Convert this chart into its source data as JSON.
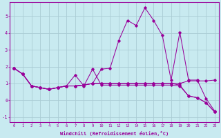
{
  "xlabel": "Windchill (Refroidissement éolien,°C)",
  "background_color": "#c8eaf0",
  "grid_color": "#b8d8e0",
  "line_color": "#990099",
  "xlim_min": -0.5,
  "xlim_max": 23.5,
  "ylim_min": -1.3,
  "ylim_max": 5.85,
  "xticks": [
    0,
    1,
    2,
    3,
    4,
    5,
    6,
    7,
    8,
    9,
    10,
    11,
    12,
    13,
    14,
    15,
    16,
    17,
    18,
    19,
    20,
    21,
    22,
    23
  ],
  "yticks": [
    -1,
    0,
    1,
    2,
    3,
    4,
    5
  ],
  "series1": [
    1.9,
    1.55,
    0.85,
    0.75,
    0.65,
    0.75,
    0.85,
    0.85,
    0.9,
    1.0,
    1.85,
    1.9,
    3.55,
    4.75,
    4.45,
    5.5,
    4.75,
    3.85,
    1.2,
    4.05,
    1.2,
    1.2,
    0.1,
    -0.65
  ],
  "series2": [
    1.9,
    1.55,
    0.85,
    0.75,
    0.65,
    0.75,
    0.85,
    0.85,
    0.9,
    1.0,
    1.0,
    1.0,
    1.0,
    1.0,
    1.0,
    1.0,
    1.0,
    1.0,
    1.0,
    1.0,
    1.15,
    1.15,
    1.15,
    1.2
  ],
  "series3": [
    1.9,
    1.55,
    0.85,
    0.75,
    0.65,
    0.75,
    0.85,
    0.85,
    0.9,
    1.0,
    1.0,
    1.0,
    1.0,
    1.0,
    1.0,
    1.0,
    1.0,
    1.0,
    1.0,
    0.9,
    0.25,
    0.15,
    -0.15,
    -0.7
  ],
  "series4": [
    1.9,
    1.55,
    0.85,
    0.75,
    0.65,
    0.75,
    0.85,
    1.5,
    0.85,
    1.85,
    0.9,
    0.9,
    0.9,
    0.9,
    0.9,
    0.9,
    0.9,
    0.9,
    0.9,
    0.85,
    0.25,
    0.15,
    -0.15,
    -0.7
  ]
}
